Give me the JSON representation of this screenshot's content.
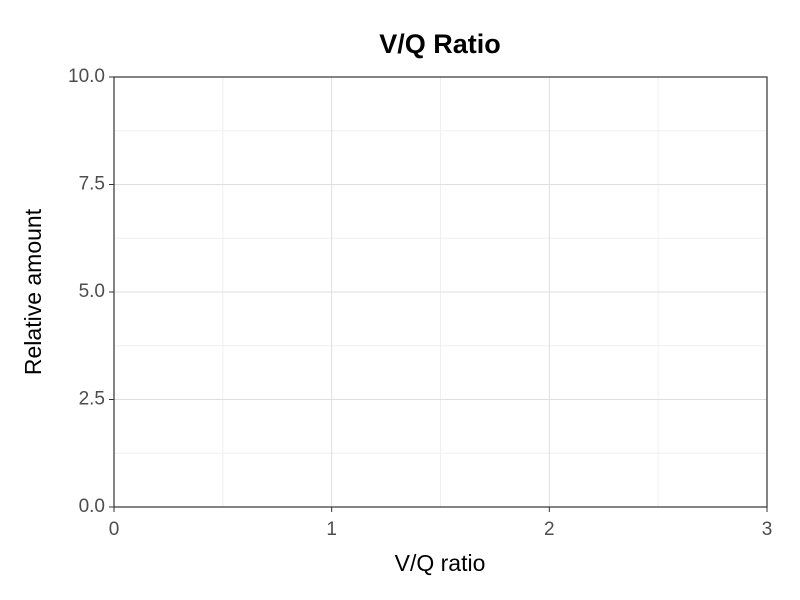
{
  "chart_data": {
    "type": "line",
    "title": "V/Q Ratio",
    "x_label": "V/Q ratio",
    "y_label": "Relative amount",
    "xlim": [
      0,
      3
    ],
    "xticks": [
      0,
      1,
      2,
      3
    ],
    "xminorticks": [
      0.5,
      1.5,
      2.5
    ],
    "ylim": [
      0,
      10
    ],
    "yticks": [
      {
        "value": 0,
        "label": "0.0"
      },
      2.5,
      {
        "value": 5,
        "label": "5.0"
      },
      7.5,
      {
        "value": 10,
        "label": "10.0"
      }
    ],
    "yminorticks": [
      1.25,
      3.75,
      6.25,
      8.75
    ],
    "grid": true
  }
}
